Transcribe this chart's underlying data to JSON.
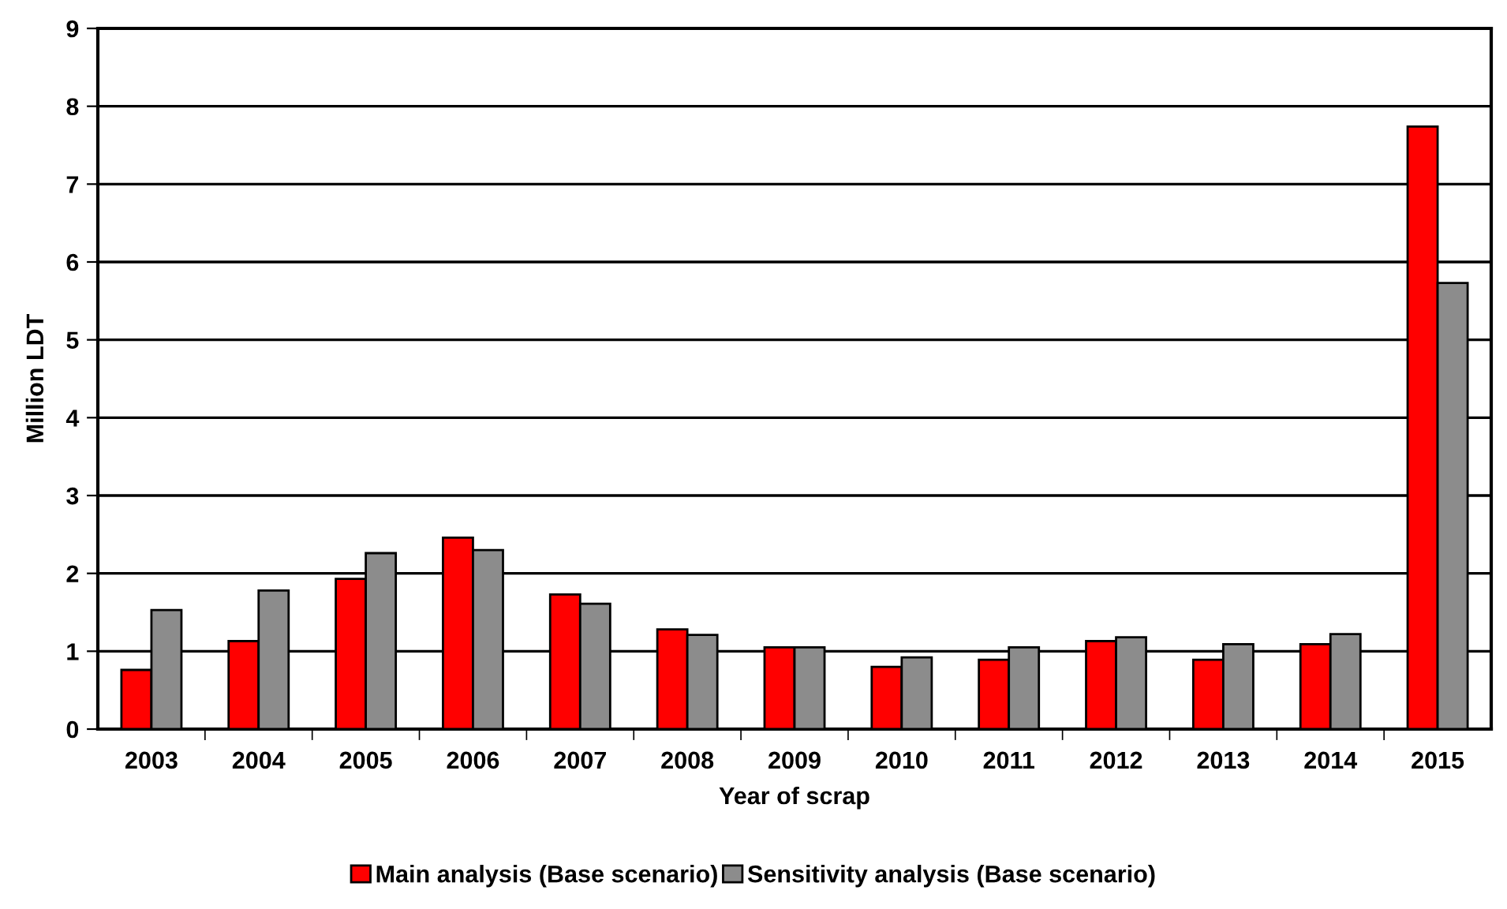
{
  "chart_data": {
    "type": "bar",
    "xlabel": "Year of scrap",
    "ylabel": "Million LDT",
    "categories": [
      "2003",
      "2004",
      "2005",
      "2006",
      "2007",
      "2008",
      "2009",
      "2010",
      "2011",
      "2012",
      "2013",
      "2014",
      "2015"
    ],
    "series": [
      {
        "name": "Main analysis (Base scenario)",
        "color": "#ff0000",
        "values": [
          0.76,
          1.13,
          1.93,
          2.46,
          1.73,
          1.28,
          1.05,
          0.8,
          0.89,
          1.13,
          0.89,
          1.09,
          7.74
        ]
      },
      {
        "name": "Sensitivity analysis (Base scenario)",
        "color": "#8c8c8c",
        "values": [
          1.53,
          1.78,
          2.26,
          2.3,
          1.61,
          1.21,
          1.05,
          0.92,
          1.05,
          1.18,
          1.09,
          1.22,
          5.73
        ]
      }
    ],
    "ylim": [
      0,
      9
    ],
    "yticks": [
      0,
      1,
      2,
      3,
      4,
      5,
      6,
      7,
      8,
      9
    ],
    "grid": "y",
    "legend": "bottom"
  }
}
